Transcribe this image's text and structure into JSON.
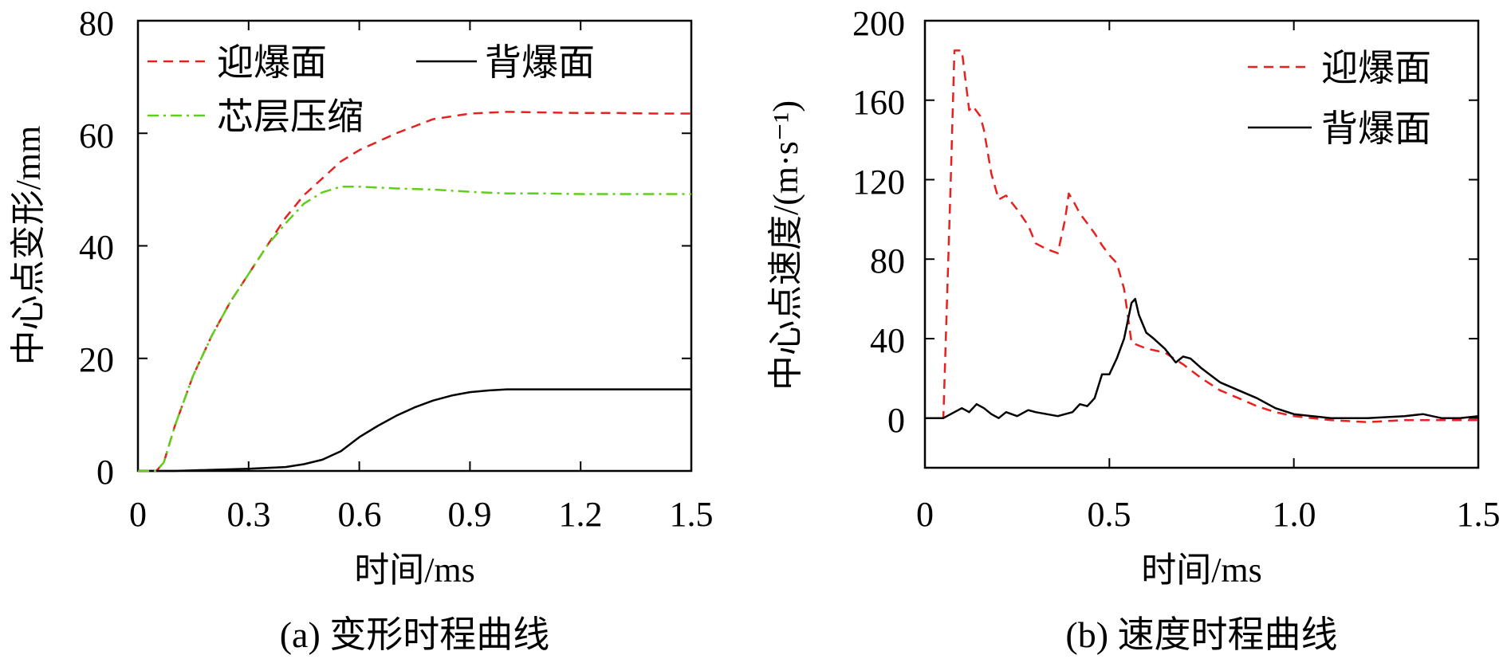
{
  "chart_data": [
    {
      "type": "line",
      "caption": "(a) 变形时程曲线",
      "xlabel": "时间/ms",
      "ylabel": "中心点变形/mm",
      "xlim": [
        0,
        1.5
      ],
      "ylim": [
        0,
        80
      ],
      "xticks": [
        "0",
        "0.3",
        "0.6",
        "0.9",
        "1.2",
        "1.5"
      ],
      "yticks": [
        "0",
        "20",
        "40",
        "60",
        "80"
      ],
      "legend": [
        "迎爆面",
        "背爆面",
        "芯层压缩"
      ],
      "series": [
        {
          "name": "迎爆面",
          "style": "dashed",
          "color": "#e8201e",
          "x": [
            0,
            0.05,
            0.07,
            0.1,
            0.15,
            0.2,
            0.25,
            0.3,
            0.35,
            0.4,
            0.45,
            0.5,
            0.55,
            0.6,
            0.7,
            0.8,
            0.9,
            1.0,
            1.1,
            1.2,
            1.3,
            1.4,
            1.5
          ],
          "y": [
            0,
            0,
            1.5,
            8,
            17,
            24,
            30,
            35,
            40,
            45,
            49,
            52,
            55,
            57,
            60,
            62.5,
            63.5,
            63.8,
            63.7,
            63.6,
            63.6,
            63.5,
            63.5
          ]
        },
        {
          "name": "背爆面",
          "style": "solid",
          "color": "#000000",
          "x": [
            0,
            0.1,
            0.2,
            0.3,
            0.4,
            0.45,
            0.5,
            0.55,
            0.6,
            0.65,
            0.7,
            0.75,
            0.8,
            0.85,
            0.9,
            0.95,
            1.0,
            1.1,
            1.2,
            1.3,
            1.4,
            1.5
          ],
          "y": [
            0,
            0,
            0.2,
            0.4,
            0.7,
            1.2,
            2,
            3.5,
            6,
            8,
            9.8,
            11.3,
            12.5,
            13.4,
            14,
            14.3,
            14.5,
            14.5,
            14.5,
            14.5,
            14.5,
            14.5
          ]
        },
        {
          "name": "芯层压缩",
          "style": "dashdot",
          "color": "#5fcf1b",
          "x": [
            0,
            0.05,
            0.07,
            0.1,
            0.15,
            0.2,
            0.25,
            0.3,
            0.35,
            0.4,
            0.45,
            0.5,
            0.55,
            0.6,
            0.7,
            0.8,
            0.9,
            1.0,
            1.1,
            1.2,
            1.3,
            1.4,
            1.5
          ],
          "y": [
            0,
            0,
            1.5,
            8,
            17,
            24,
            30,
            35,
            40,
            44,
            47.5,
            49.5,
            50.5,
            50.5,
            50.2,
            50,
            49.6,
            49.3,
            49.3,
            49.2,
            49.2,
            49.2,
            49.2
          ]
        }
      ]
    },
    {
      "type": "line",
      "caption": "(b) 速度时程曲线",
      "xlabel": "时间/ms",
      "ylabel": "中心点速度/(m·s⁻¹)",
      "xlim": [
        0,
        1.5
      ],
      "ylim": [
        -25,
        200
      ],
      "xticks": [
        "0",
        "0.5",
        "1.0",
        "1.5"
      ],
      "yticks": [
        "0",
        "40",
        "80",
        "120",
        "160",
        "200"
      ],
      "legend": [
        "迎爆面",
        "背爆面"
      ],
      "series": [
        {
          "name": "迎爆面",
          "style": "dashed",
          "color": "#e8201e",
          "x": [
            0,
            0.05,
            0.07,
            0.08,
            0.1,
            0.12,
            0.13,
            0.15,
            0.16,
            0.18,
            0.2,
            0.22,
            0.25,
            0.28,
            0.3,
            0.33,
            0.36,
            0.38,
            0.39,
            0.4,
            0.42,
            0.44,
            0.46,
            0.48,
            0.5,
            0.52,
            0.54,
            0.56,
            0.6,
            0.65,
            0.7,
            0.75,
            0.8,
            0.85,
            0.9,
            0.95,
            1.0,
            1.05,
            1.1,
            1.2,
            1.3,
            1.4,
            1.5
          ],
          "y": [
            0,
            0,
            120,
            185,
            185,
            155,
            157,
            152,
            145,
            123,
            110,
            112,
            105,
            97,
            88,
            85,
            83,
            100,
            113,
            110,
            103,
            98,
            93,
            87,
            82,
            78,
            65,
            38,
            35,
            33,
            27,
            20,
            14,
            10,
            6,
            3,
            1,
            0,
            -1,
            -2,
            -1,
            -1,
            -1
          ]
        },
        {
          "name": "背爆面",
          "style": "solid",
          "color": "#000000",
          "x": [
            0,
            0.05,
            0.08,
            0.1,
            0.12,
            0.14,
            0.16,
            0.18,
            0.2,
            0.22,
            0.25,
            0.28,
            0.3,
            0.33,
            0.36,
            0.38,
            0.4,
            0.42,
            0.44,
            0.46,
            0.48,
            0.5,
            0.52,
            0.54,
            0.56,
            0.57,
            0.58,
            0.6,
            0.62,
            0.65,
            0.68,
            0.7,
            0.72,
            0.75,
            0.8,
            0.85,
            0.9,
            0.95,
            1.0,
            1.05,
            1.1,
            1.2,
            1.3,
            1.35,
            1.4,
            1.45,
            1.5
          ],
          "y": [
            0,
            0,
            3,
            5,
            3,
            7,
            5,
            2,
            0,
            3,
            1,
            4,
            3,
            2,
            1,
            2,
            3,
            7,
            6,
            10,
            22,
            22,
            30,
            40,
            58,
            60,
            52,
            43,
            40,
            35,
            28,
            31,
            30,
            25,
            18,
            14,
            10,
            5,
            2,
            1,
            0,
            0,
            1,
            2,
            0,
            0,
            1
          ]
        }
      ]
    }
  ]
}
